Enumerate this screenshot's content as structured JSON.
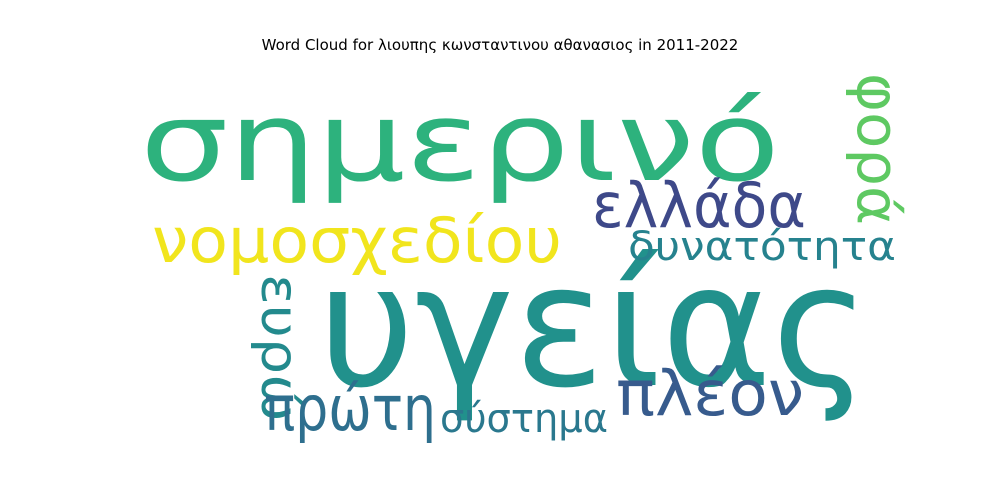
{
  "title": "Word Cloud for λιουπης κωνσταντινου αθανασιος in 2011-2022",
  "words": [
    {
      "text": "υγείας",
      "color": "#21918c",
      "rotated": false
    },
    {
      "text": "σημερινό",
      "color": "#2db27d",
      "rotated": false
    },
    {
      "text": "νομοσχεδίου",
      "color": "#f1e51d",
      "rotated": false
    },
    {
      "text": "ελλάδα",
      "color": "#3e4989",
      "rotated": false
    },
    {
      "text": "φορά",
      "color": "#5ec962",
      "rotated": true
    },
    {
      "text": "δυνατότητα",
      "color": "#26828e",
      "rotated": false
    },
    {
      "text": "ευρώ",
      "color": "#238a8d",
      "rotated": true
    },
    {
      "text": "πλέον",
      "color": "#375b8d",
      "rotated": false
    },
    {
      "text": "πρώτη",
      "color": "#2e6f8e",
      "rotated": false
    },
    {
      "text": "σύστημα",
      "color": "#2a788e",
      "rotated": false
    }
  ]
}
